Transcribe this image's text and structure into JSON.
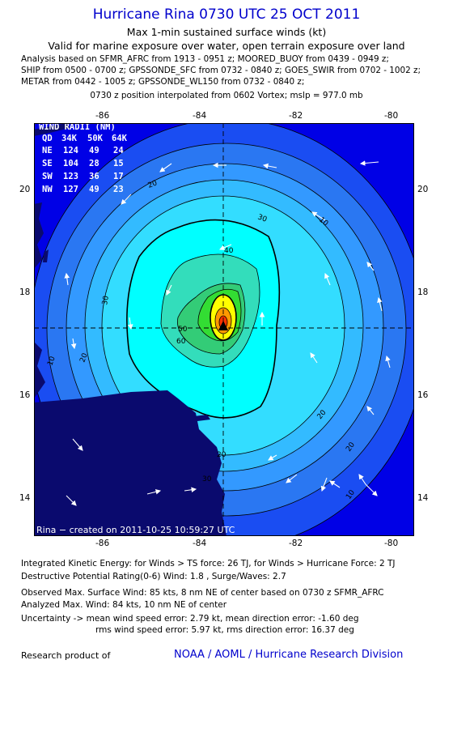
{
  "header": {
    "title": "Hurricane Rina 0730 UTC 25 OCT 2011",
    "subtitle": "Max 1-min sustained surface winds (kt)",
    "valid": "Valid for marine exposure over water, open terrain exposure over land",
    "analysis_lines": [
      "Analysis based on SFMR_AFRC from 1913 - 0951 z; MOORED_BUOY from 0439 - 0949 z;",
      "SHIP from 0500 - 0700 z; GPSSONDE_SFC from 0732 - 0840 z; GOES_SWIR from 0702 - 1002 z;",
      "METAR from 0442 - 1005 z; GPSSONDE_WL150 from 0732 - 0840 z;"
    ],
    "position_line": "0730 z position interpolated from 0602 Vortex; mslp = 977.0 mb"
  },
  "map": {
    "lon_ticks": [
      "-86",
      "-84",
      "-82",
      "-80"
    ],
    "lat_ticks": [
      "20",
      "18",
      "16",
      "14"
    ],
    "center": {
      "lon": -83.45,
      "lat": 17.3
    },
    "wind_radii": {
      "title": "WIND RADII (NM)",
      "header": [
        "QD",
        "34K",
        "50K",
        "64K"
      ],
      "rows": [
        [
          "NE",
          "124",
          "49",
          "24"
        ],
        [
          "SE",
          "104",
          "28",
          "15"
        ],
        [
          "SW",
          "123",
          "36",
          "17"
        ],
        [
          "NW",
          "127",
          "49",
          "23"
        ]
      ]
    },
    "contour_labels": [
      "10",
      "10",
      "20",
      "20",
      "20",
      "20",
      "20",
      "30",
      "30",
      "30",
      "40",
      "50",
      "60",
      "10"
    ],
    "credit": "Rina − created on 2011-10-25 10:59:27 UTC",
    "colors": {
      "ocean_outer": "#0000e6",
      "c10": "#1a4df2",
      "c15": "#2a77f2",
      "c20": "#3399ff",
      "c25": "#33bbff",
      "c30": "#33ddff",
      "c35": "#00ffff",
      "c40": "#33ddbb",
      "c50": "#33cc77",
      "c60": "#33dd33",
      "c64": "#ffff00",
      "c70": "#ff9900",
      "c80": "#ff3300",
      "land": "#0a0a6e"
    }
  },
  "footer": {
    "ike": "Integrated Kinetic Energy:  for Winds > TS force: 26 TJ,  for Winds > Hurricane Force: 2 TJ",
    "dpr": "Destructive Potential Rating(0-6)   Wind: 1.8 , Surge/Waves: 2.7",
    "observed": "Observed Max. Surface Wind: 85 kts, 8 nm NE of center based on 0730 z SFMR_AFRC",
    "analyzed": "Analyzed Max. Wind: 84 kts, 10 nm NE of center",
    "uncertainty1": "Uncertainty -> mean wind speed error: 2.79 kt,   mean direction error:  -1.60 deg",
    "uncertainty2": "rms wind speed error: 5.97 kt,   rms direction error: 16.37 deg",
    "research": "Research product of",
    "noaa": "NOAA / AOML / Hurricane Research Division"
  }
}
